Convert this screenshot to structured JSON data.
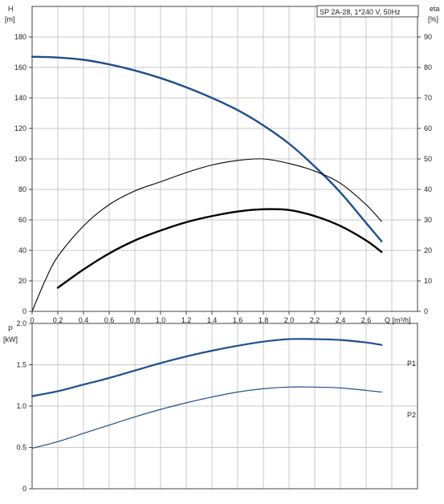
{
  "title_box": "SP 2A-28, 1*240 V, 50Hz",
  "chart_data": [
    {
      "type": "line",
      "panel": "top",
      "y_left_label": [
        "H",
        "[m]"
      ],
      "y_right_label": [
        "eta",
        "[%]"
      ],
      "x_label": "Q [m³/h]",
      "xlim": [
        0,
        3.0
      ],
      "x_ticks": [
        0,
        0.2,
        0.4,
        0.6,
        0.8,
        1.0,
        1.2,
        1.4,
        1.6,
        1.8,
        2.0,
        2.2,
        2.4,
        2.6
      ],
      "x_tick_labels": [
        "0",
        "0.2",
        "0.4",
        "0.6",
        "0.8",
        "1.0",
        "1.2",
        "1.4",
        "1.6",
        "1.8",
        "2.0",
        "2.2",
        "2.4",
        "2.6"
      ],
      "ylim_left": [
        0,
        200
      ],
      "y_ticks_left": [
        0,
        20,
        40,
        60,
        80,
        100,
        120,
        140,
        160,
        180
      ],
      "ylim_right": [
        0,
        100
      ],
      "y_ticks_right": [
        0,
        10,
        20,
        30,
        40,
        50,
        60,
        70,
        80,
        90
      ],
      "grid": true,
      "series": [
        {
          "key": "H",
          "color": "#1f4e8c",
          "axis": "left",
          "x": [
            0,
            0.2,
            0.4,
            0.6,
            0.8,
            1.0,
            1.2,
            1.4,
            1.6,
            1.8,
            2.0,
            2.2,
            2.4,
            2.6,
            2.72
          ],
          "values": [
            167,
            166.5,
            165,
            162,
            158,
            153,
            147,
            140,
            132,
            122,
            110,
            95,
            78,
            58,
            46
          ]
        },
        {
          "key": "eta",
          "color": "#000000",
          "axis": "right",
          "x": [
            0,
            0.1,
            0.2,
            0.4,
            0.6,
            0.8,
            1.0,
            1.2,
            1.4,
            1.6,
            1.8,
            2.0,
            2.2,
            2.4,
            2.6,
            2.72
          ],
          "values": [
            0,
            10,
            18,
            28,
            35,
            39.5,
            42.5,
            45.5,
            48,
            49.5,
            50,
            48.5,
            46,
            42,
            35,
            29.5
          ]
        },
        {
          "key": "eta-pump",
          "color": "#000000",
          "axis": "left",
          "x": [
            0.2,
            0.4,
            0.6,
            0.8,
            1.0,
            1.2,
            1.4,
            1.6,
            1.8,
            2.0,
            2.2,
            2.4,
            2.6,
            2.72
          ],
          "values": [
            15.5,
            27.5,
            38,
            46.5,
            53,
            58.5,
            62.5,
            65.5,
            67,
            66.5,
            62.5,
            56,
            46.5,
            39
          ]
        }
      ]
    },
    {
      "type": "line",
      "panel": "bottom",
      "y_label": [
        "P",
        "[kW]"
      ],
      "xlim": [
        0,
        3.0
      ],
      "ylim": [
        0,
        2.0
      ],
      "y_ticks": [
        0,
        0.5,
        1.0,
        1.5,
        2.0
      ],
      "y_tick_labels": [
        "0",
        "0.5",
        "1.0",
        "1.5",
        "2.0"
      ],
      "grid": true,
      "series": [
        {
          "name": "P1",
          "color": "#1f4e8c",
          "x": [
            0,
            0.2,
            0.4,
            0.6,
            0.8,
            1.0,
            1.2,
            1.4,
            1.6,
            1.8,
            2.0,
            2.2,
            2.4,
            2.6,
            2.72
          ],
          "values": [
            1.12,
            1.18,
            1.26,
            1.34,
            1.43,
            1.52,
            1.6,
            1.67,
            1.73,
            1.78,
            1.81,
            1.81,
            1.8,
            1.77,
            1.74
          ]
        },
        {
          "name": "P2",
          "color": "#1f4e8c",
          "x": [
            0,
            0.2,
            0.4,
            0.6,
            0.8,
            1.0,
            1.2,
            1.4,
            1.6,
            1.8,
            2.0,
            2.2,
            2.4,
            2.6,
            2.72
          ],
          "values": [
            0.49,
            0.57,
            0.67,
            0.77,
            0.87,
            0.96,
            1.04,
            1.11,
            1.17,
            1.21,
            1.23,
            1.23,
            1.22,
            1.19,
            1.17
          ]
        }
      ]
    }
  ]
}
